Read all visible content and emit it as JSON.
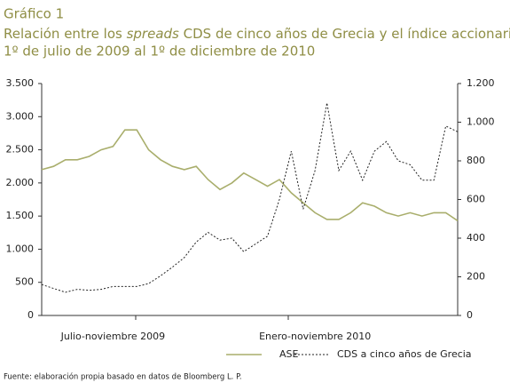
{
  "chart_data": {
    "type": "line",
    "title": "Gráfico 1",
    "subtitle": [
      "Relación entre los ",
      "spreads",
      " CDS de cinco años de Grecia y el índice accionario ASE,",
      "1º de julio de 2009 al 1º de diciembre de 2010"
    ],
    "categories": [
      null,
      null,
      null,
      null,
      null,
      null,
      "Julio-noviembre 2009",
      null,
      null,
      null,
      null,
      null,
      null,
      null,
      null,
      null,
      null,
      null,
      null,
      null,
      null,
      null,
      null,
      "Enero-noviembre 2010",
      null,
      null,
      null,
      null,
      null,
      null,
      null,
      null,
      null,
      null,
      null,
      null
    ],
    "series": [
      {
        "name": "ASE",
        "color": "#a9ae6c",
        "values": [
          2200,
          2250,
          2350,
          2350,
          2400,
          2500,
          2550,
          2800,
          2800,
          2500,
          2350,
          2250,
          2200,
          2250,
          2050,
          1900,
          2000,
          2150,
          2050,
          1950,
          2050,
          1850,
          1700,
          1550,
          1450,
          1450,
          1550,
          1700,
          1650,
          1550,
          1500,
          1550,
          1500,
          1550,
          1550,
          1430
        ]
      },
      {
        "name": "CDS a cinco años de Grecia",
        "color": "#222222",
        "axis": "y2",
        "values": [
          160,
          140,
          120,
          135,
          130,
          135,
          150,
          150,
          150,
          165,
          205,
          250,
          300,
          380,
          430,
          390,
          400,
          330,
          370,
          410,
          600,
          850,
          550,
          750,
          1100,
          750,
          850,
          700,
          850,
          900,
          800,
          780,
          700,
          700,
          980,
          950
        ]
      }
    ],
    "ylim": [
      0,
      3500
    ],
    "yticks": [
      0,
      500,
      {
        "value": 1000,
        "label": "1.000"
      },
      {
        "value": 1500,
        "label": "1.500"
      },
      {
        "value": 2000,
        "label": "2.000"
      },
      {
        "value": 2500,
        "label": "2.500"
      },
      {
        "value": 3000,
        "label": "3.000"
      },
      {
        "value": 3500,
        "label": "3.500"
      }
    ],
    "y2lim": [
      0,
      1200
    ],
    "y2ticks": [
      0,
      200,
      400,
      600,
      800,
      {
        "value": 1000,
        "label": "1.000"
      },
      {
        "value": 1200,
        "label": "1.200"
      }
    ],
    "source": "Fuente: elaboración propia basado en datos de Bloomberg L. P."
  }
}
